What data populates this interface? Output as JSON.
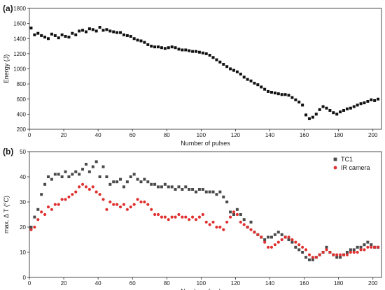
{
  "chart_data": [
    {
      "type": "scatter",
      "panel_label": "(a)",
      "xlabel": "Number of pulses",
      "ylabel": "Energy (J)",
      "xlim": [
        0,
        205
      ],
      "ylim": [
        200,
        1800
      ],
      "xticks": [
        0,
        20,
        40,
        60,
        80,
        100,
        120,
        140,
        160,
        180,
        200
      ],
      "yticks": [
        200,
        400,
        600,
        800,
        1000,
        1200,
        1400,
        1600,
        1800
      ],
      "series": [
        {
          "color": "#111111",
          "marker": "square",
          "x": [
            1,
            3,
            5,
            7,
            9,
            11,
            13,
            15,
            17,
            19,
            21,
            23,
            25,
            27,
            29,
            31,
            33,
            35,
            37,
            39,
            41,
            43,
            45,
            47,
            49,
            51,
            53,
            55,
            57,
            59,
            61,
            63,
            65,
            67,
            69,
            71,
            73,
            75,
            77,
            79,
            81,
            83,
            85,
            87,
            89,
            91,
            93,
            95,
            97,
            99,
            101,
            103,
            105,
            107,
            109,
            111,
            113,
            115,
            117,
            119,
            121,
            123,
            125,
            127,
            129,
            131,
            133,
            135,
            137,
            139,
            141,
            143,
            145,
            147,
            149,
            151,
            153,
            155,
            157,
            159,
            161,
            163,
            165,
            167,
            169,
            171,
            173,
            175,
            177,
            179,
            181,
            183,
            185,
            187,
            189,
            191,
            193,
            195,
            197,
            199,
            201,
            203
          ],
          "y": [
            1540,
            1450,
            1470,
            1440,
            1420,
            1400,
            1460,
            1440,
            1410,
            1450,
            1430,
            1420,
            1470,
            1450,
            1500,
            1510,
            1490,
            1530,
            1520,
            1500,
            1550,
            1510,
            1520,
            1500,
            1490,
            1480,
            1480,
            1450,
            1440,
            1430,
            1400,
            1380,
            1370,
            1350,
            1320,
            1300,
            1290,
            1290,
            1280,
            1270,
            1280,
            1290,
            1280,
            1260,
            1250,
            1250,
            1240,
            1230,
            1230,
            1220,
            1210,
            1200,
            1180,
            1150,
            1120,
            1090,
            1060,
            1030,
            1000,
            980,
            960,
            930,
            890,
            860,
            840,
            810,
            790,
            760,
            730,
            700,
            690,
            680,
            670,
            660,
            660,
            650,
            620,
            590,
            560,
            520,
            390,
            340,
            360,
            400,
            460,
            500,
            480,
            450,
            420,
            400,
            430,
            450,
            470,
            480,
            500,
            520,
            540,
            550,
            570,
            590,
            580,
            600
          ]
        }
      ]
    },
    {
      "type": "scatter",
      "panel_label": "(b)",
      "xlabel": "Number of pulses",
      "ylabel": "max. Δ T (°C)",
      "xlim": [
        0,
        205
      ],
      "ylim": [
        0,
        50
      ],
      "xticks": [
        0,
        20,
        40,
        60,
        80,
        100,
        120,
        140,
        160,
        180,
        200
      ],
      "yticks": [
        0,
        10,
        20,
        30,
        40,
        50
      ],
      "legend_position": "top-right",
      "series": [
        {
          "name": "TC1",
          "color": "#4a4a4a",
          "marker": "square",
          "x": [
            1,
            3,
            5,
            7,
            9,
            11,
            13,
            15,
            17,
            19,
            21,
            23,
            25,
            27,
            29,
            31,
            33,
            35,
            37,
            39,
            41,
            43,
            45,
            47,
            49,
            51,
            53,
            55,
            57,
            59,
            61,
            63,
            65,
            67,
            69,
            71,
            73,
            75,
            77,
            79,
            81,
            83,
            85,
            87,
            89,
            91,
            93,
            95,
            97,
            99,
            101,
            103,
            105,
            107,
            109,
            111,
            113,
            115,
            117,
            119,
            121,
            123,
            125,
            127,
            129,
            131,
            133,
            135,
            137,
            139,
            141,
            143,
            145,
            147,
            149,
            151,
            153,
            155,
            157,
            159,
            161,
            163,
            165,
            167,
            169,
            171,
            173,
            175,
            177,
            179,
            181,
            183,
            185,
            187,
            189,
            191,
            193,
            195,
            197,
            199,
            201,
            203
          ],
          "y": [
            20,
            24,
            27,
            33,
            37,
            40,
            39,
            41,
            41,
            40,
            42,
            40,
            41,
            42,
            41,
            43,
            45,
            42,
            44,
            46,
            40,
            44,
            40,
            37,
            38,
            38,
            39,
            36,
            38,
            40,
            41,
            39,
            38,
            39,
            38,
            37,
            37,
            36,
            36,
            37,
            36,
            36,
            35,
            36,
            35,
            36,
            35,
            35,
            34,
            35,
            35,
            34,
            34,
            34,
            33,
            34,
            32,
            30,
            26,
            25,
            27,
            25,
            23,
            20,
            22,
            18,
            17,
            16,
            15,
            16,
            16,
            17,
            18,
            17,
            16,
            15,
            14,
            12,
            11,
            10,
            8,
            7,
            7,
            8,
            9,
            10,
            12,
            10,
            9,
            8,
            8,
            9,
            10,
            11,
            11,
            12,
            12,
            13,
            14,
            13,
            12,
            12
          ]
        },
        {
          "name": "IR camera",
          "color": "#e03030",
          "marker": "circle",
          "x": [
            1,
            3,
            5,
            7,
            9,
            11,
            13,
            15,
            17,
            19,
            21,
            23,
            25,
            27,
            29,
            31,
            33,
            35,
            37,
            39,
            41,
            43,
            45,
            47,
            49,
            51,
            53,
            55,
            57,
            59,
            61,
            63,
            65,
            67,
            69,
            71,
            73,
            75,
            77,
            79,
            81,
            83,
            85,
            87,
            89,
            91,
            93,
            95,
            97,
            99,
            101,
            103,
            105,
            107,
            109,
            111,
            113,
            115,
            117,
            119,
            121,
            123,
            125,
            127,
            129,
            131,
            133,
            135,
            137,
            139,
            141,
            143,
            145,
            147,
            149,
            151,
            153,
            155,
            157,
            159,
            161,
            163,
            165,
            167,
            169,
            171,
            173,
            175,
            177,
            179,
            181,
            183,
            185,
            187,
            189,
            191,
            193,
            195,
            197,
            199,
            201,
            203
          ],
          "y": [
            19,
            20,
            23,
            26,
            25,
            28,
            27,
            29,
            29,
            31,
            31,
            32,
            33,
            34,
            36,
            37,
            36,
            35,
            36,
            34,
            33,
            31,
            27,
            30,
            29,
            29,
            28,
            29,
            27,
            28,
            29,
            31,
            30,
            30,
            29,
            27,
            25,
            25,
            24,
            24,
            23,
            24,
            24,
            25,
            24,
            24,
            23,
            24,
            23,
            24,
            25,
            22,
            21,
            22,
            20,
            20,
            19,
            22,
            24,
            26,
            25,
            22,
            21,
            20,
            19,
            18,
            17,
            16,
            14,
            12,
            12,
            13,
            14,
            15,
            16,
            16,
            15,
            14,
            13,
            12,
            11,
            9,
            8,
            8,
            9,
            10,
            11,
            10,
            9,
            9,
            9,
            9,
            9,
            10,
            10,
            10,
            11,
            11,
            12,
            12,
            12,
            12
          ]
        }
      ]
    }
  ]
}
